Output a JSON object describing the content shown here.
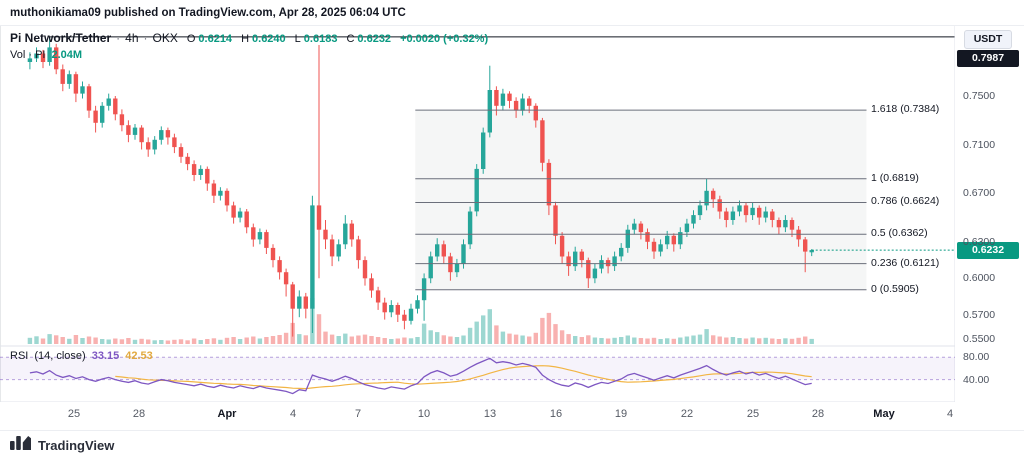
{
  "attribution": {
    "text": "muthonikiama09 published on TradingView.com, Apr 28, 2025 06:04 UTC"
  },
  "symbol_legend": {
    "name": "Pi Network/Tether",
    "separator": "·",
    "interval": "4h",
    "exchange": "OKX",
    "open_label": "O",
    "open": "0.6214",
    "high_label": "H",
    "high": "0.6240",
    "low_label": "L",
    "low": "0.6183",
    "close_label": "C",
    "close": "0.6232",
    "change": "+0.0020 (+0.32%)"
  },
  "volume_legend": {
    "label": "Vol · PI",
    "value": "2.04M"
  },
  "rsi_legend": {
    "name": "RSI",
    "params": "(14, close)",
    "value": "33.15",
    "ma_value": "42.53"
  },
  "price_axis": {
    "currency": "USDT",
    "ticks": [
      {
        "label": "0.7500",
        "value": 0.75
      },
      {
        "label": "0.7100",
        "value": 0.71
      },
      {
        "label": "0.6700",
        "value": 0.67
      },
      {
        "label": "0.6300",
        "value": 0.63
      },
      {
        "label": "0.6000",
        "value": 0.6
      },
      {
        "label": "0.5700",
        "value": 0.57
      },
      {
        "label": "0.5500",
        "value": 0.55
      }
    ],
    "high_badge": {
      "label": "0.7987",
      "value": 0.7987
    },
    "last_badge": {
      "label": "0.6232",
      "value": 0.6232
    }
  },
  "rsi_axis": {
    "ticks": [
      {
        "label": "80.00",
        "value": 80
      },
      {
        "label": "40.00",
        "value": 40
      }
    ]
  },
  "time_axis": {
    "ticks": [
      {
        "label": "25",
        "day": 2
      },
      {
        "label": "28",
        "day": 5
      },
      {
        "label": "Apr",
        "day": 9,
        "bold": true
      },
      {
        "label": "4",
        "day": 12
      },
      {
        "label": "7",
        "day": 15
      },
      {
        "label": "10",
        "day": 18
      },
      {
        "label": "13",
        "day": 21
      },
      {
        "label": "16",
        "day": 24
      },
      {
        "label": "19",
        "day": 27
      },
      {
        "label": "22",
        "day": 30
      },
      {
        "label": "25",
        "day": 33
      },
      {
        "label": "28",
        "day": 36
      },
      {
        "label": "May",
        "day": 39,
        "bold": true
      },
      {
        "label": "4",
        "day": 42
      }
    ]
  },
  "fib": {
    "start_day": 17.6,
    "end_day": 38.2,
    "levels": [
      {
        "label": "1.618 (0.7384)",
        "price": 0.7384
      },
      {
        "label": "1 (0.6819)",
        "price": 0.6819
      },
      {
        "label": "0.786 (0.6624)",
        "price": 0.6624
      },
      {
        "label": "0.5 (0.6362)",
        "price": 0.6362
      },
      {
        "label": "0.236 (0.6121)",
        "price": 0.6121
      },
      {
        "label": "0 (0.5905)",
        "price": 0.5905
      }
    ]
  },
  "footer": {
    "brand": "TradingView"
  },
  "colors": {
    "up": "#26a69a",
    "down": "#ef5350",
    "accent": "#089981",
    "rsi": "#7e57c2",
    "rsi_ma": "#f2b544",
    "band_line": "rgba(126,87,194,0.55)",
    "band_fill": "rgba(126,87,194,0.07)",
    "fib_line": "#6b6f7b",
    "fib_fill": "rgba(130,134,145,0.08)",
    "price_line_high": "#131722",
    "separator": "#e0e3eb"
  },
  "chart_data": {
    "type": "candlestick",
    "title": "Pi Network/Tether · 4h · OKX",
    "last_ohlc": {
      "open": 0.6214,
      "high": 0.624,
      "low": 0.6183,
      "close": 0.6232,
      "change": 0.002,
      "change_pct": 0.32
    },
    "price_range": [
      0.545,
      0.806
    ],
    "high_price_line": 0.7987,
    "last_price": 0.6232,
    "x_span_days": [
      "Mar 23",
      "May 5"
    ],
    "fib_levels": [
      [
        1.618,
        0.7384
      ],
      [
        1,
        0.6819
      ],
      [
        0.786,
        0.6624
      ],
      [
        0.5,
        0.6362
      ],
      [
        0.236,
        0.6121
      ],
      [
        0,
        0.5905
      ]
    ],
    "candles": [
      [
        0.778,
        0.786,
        0.772,
        0.781
      ],
      [
        0.781,
        0.79,
        0.778,
        0.785
      ],
      [
        0.785,
        0.788,
        0.773,
        0.778
      ],
      [
        0.778,
        0.7987,
        0.775,
        0.79
      ],
      [
        0.79,
        0.793,
        0.768,
        0.772
      ],
      [
        0.772,
        0.776,
        0.754,
        0.76
      ],
      [
        0.76,
        0.771,
        0.756,
        0.768
      ],
      [
        0.768,
        0.77,
        0.745,
        0.752
      ],
      [
        0.752,
        0.762,
        0.748,
        0.758
      ],
      [
        0.758,
        0.76,
        0.732,
        0.738
      ],
      [
        0.738,
        0.742,
        0.72,
        0.728
      ],
      [
        0.728,
        0.745,
        0.724,
        0.742
      ],
      [
        0.742,
        0.752,
        0.738,
        0.748
      ],
      [
        0.748,
        0.75,
        0.73,
        0.735
      ],
      [
        0.735,
        0.739,
        0.721,
        0.726
      ],
      [
        0.726,
        0.73,
        0.712,
        0.718
      ],
      [
        0.718,
        0.727,
        0.714,
        0.724
      ],
      [
        0.724,
        0.726,
        0.706,
        0.712
      ],
      [
        0.712,
        0.716,
        0.7,
        0.706
      ],
      [
        0.706,
        0.717,
        0.702,
        0.714
      ],
      [
        0.714,
        0.725,
        0.71,
        0.722
      ],
      [
        0.722,
        0.724,
        0.71,
        0.716
      ],
      [
        0.716,
        0.719,
        0.703,
        0.708
      ],
      [
        0.708,
        0.711,
        0.695,
        0.7
      ],
      [
        0.7,
        0.703,
        0.689,
        0.694
      ],
      [
        0.694,
        0.697,
        0.68,
        0.685
      ],
      [
        0.685,
        0.693,
        0.681,
        0.69
      ],
      [
        0.69,
        0.692,
        0.672,
        0.678
      ],
      [
        0.678,
        0.681,
        0.662,
        0.668
      ],
      [
        0.668,
        0.675,
        0.664,
        0.672
      ],
      [
        0.672,
        0.674,
        0.655,
        0.66
      ],
      [
        0.66,
        0.663,
        0.645,
        0.65
      ],
      [
        0.65,
        0.658,
        0.646,
        0.655
      ],
      [
        0.655,
        0.657,
        0.637,
        0.642
      ],
      [
        0.642,
        0.645,
        0.626,
        0.632
      ],
      [
        0.632,
        0.641,
        0.628,
        0.638
      ],
      [
        0.638,
        0.64,
        0.62,
        0.625
      ],
      [
        0.625,
        0.628,
        0.609,
        0.615
      ],
      [
        0.615,
        0.618,
        0.599,
        0.605
      ],
      [
        0.605,
        0.608,
        0.585,
        0.595
      ],
      [
        0.595,
        0.597,
        0.552,
        0.575
      ],
      [
        0.575,
        0.59,
        0.568,
        0.585
      ],
      [
        0.585,
        0.588,
        0.567,
        0.575
      ],
      [
        0.575,
        0.668,
        0.555,
        0.66
      ],
      [
        0.66,
        0.792,
        0.6,
        0.64
      ],
      [
        0.64,
        0.648,
        0.624,
        0.632
      ],
      [
        0.632,
        0.636,
        0.61,
        0.618
      ],
      [
        0.618,
        0.632,
        0.614,
        0.628
      ],
      [
        0.628,
        0.652,
        0.624,
        0.645
      ],
      [
        0.645,
        0.648,
        0.626,
        0.632
      ],
      [
        0.632,
        0.635,
        0.608,
        0.615
      ],
      [
        0.615,
        0.618,
        0.594,
        0.6
      ],
      [
        0.6,
        0.604,
        0.584,
        0.59
      ],
      [
        0.59,
        0.593,
        0.574,
        0.58
      ],
      [
        0.58,
        0.584,
        0.566,
        0.572
      ],
      [
        0.572,
        0.582,
        0.568,
        0.578
      ],
      [
        0.578,
        0.58,
        0.564,
        0.57
      ],
      [
        0.57,
        0.574,
        0.558,
        0.565
      ],
      [
        0.565,
        0.579,
        0.562,
        0.575
      ],
      [
        0.575,
        0.586,
        0.571,
        0.582
      ],
      [
        0.582,
        0.604,
        0.565,
        0.6
      ],
      [
        0.6,
        0.622,
        0.596,
        0.618
      ],
      [
        0.618,
        0.633,
        0.614,
        0.628
      ],
      [
        0.628,
        0.631,
        0.612,
        0.618
      ],
      [
        0.618,
        0.621,
        0.598,
        0.605
      ],
      [
        0.605,
        0.616,
        0.601,
        0.612
      ],
      [
        0.612,
        0.632,
        0.608,
        0.628
      ],
      [
        0.628,
        0.659,
        0.624,
        0.655
      ],
      [
        0.655,
        0.694,
        0.651,
        0.69
      ],
      [
        0.69,
        0.724,
        0.686,
        0.72
      ],
      [
        0.72,
        0.775,
        0.716,
        0.755
      ],
      [
        0.755,
        0.758,
        0.734,
        0.742
      ],
      [
        0.742,
        0.756,
        0.738,
        0.752
      ],
      [
        0.752,
        0.754,
        0.74,
        0.746
      ],
      [
        0.746,
        0.749,
        0.732,
        0.738
      ],
      [
        0.738,
        0.752,
        0.734,
        0.748
      ],
      [
        0.748,
        0.75,
        0.736,
        0.742
      ],
      [
        0.742,
        0.744,
        0.724,
        0.73
      ],
      [
        0.73,
        0.732,
        0.688,
        0.695
      ],
      [
        0.695,
        0.698,
        0.652,
        0.66
      ],
      [
        0.66,
        0.663,
        0.628,
        0.635
      ],
      [
        0.635,
        0.638,
        0.612,
        0.618
      ],
      [
        0.618,
        0.622,
        0.602,
        0.61
      ],
      [
        0.61,
        0.626,
        0.606,
        0.622
      ],
      [
        0.622,
        0.624,
        0.609,
        0.615
      ],
      [
        0.615,
        0.617,
        0.592,
        0.6
      ],
      [
        0.6,
        0.612,
        0.596,
        0.608
      ],
      [
        0.608,
        0.619,
        0.604,
        0.615
      ],
      [
        0.615,
        0.617,
        0.604,
        0.61
      ],
      [
        0.61,
        0.622,
        0.606,
        0.618
      ],
      [
        0.618,
        0.629,
        0.614,
        0.625
      ],
      [
        0.625,
        0.644,
        0.621,
        0.64
      ],
      [
        0.64,
        0.649,
        0.636,
        0.645
      ],
      [
        0.645,
        0.647,
        0.632,
        0.638
      ],
      [
        0.638,
        0.641,
        0.624,
        0.63
      ],
      [
        0.63,
        0.633,
        0.616,
        0.622
      ],
      [
        0.622,
        0.632,
        0.618,
        0.628
      ],
      [
        0.628,
        0.639,
        0.624,
        0.635
      ],
      [
        0.635,
        0.637,
        0.622,
        0.628
      ],
      [
        0.628,
        0.642,
        0.624,
        0.638
      ],
      [
        0.638,
        0.649,
        0.634,
        0.645
      ],
      [
        0.645,
        0.656,
        0.641,
        0.652
      ],
      [
        0.652,
        0.664,
        0.648,
        0.66
      ],
      [
        0.66,
        0.682,
        0.656,
        0.672
      ],
      [
        0.672,
        0.674,
        0.658,
        0.665
      ],
      [
        0.665,
        0.668,
        0.649,
        0.655
      ],
      [
        0.655,
        0.658,
        0.642,
        0.648
      ],
      [
        0.648,
        0.659,
        0.644,
        0.655
      ],
      [
        0.655,
        0.664,
        0.651,
        0.66
      ],
      [
        0.66,
        0.662,
        0.646,
        0.652
      ],
      [
        0.652,
        0.662,
        0.648,
        0.658
      ],
      [
        0.658,
        0.66,
        0.644,
        0.65
      ],
      [
        0.65,
        0.659,
        0.646,
        0.655
      ],
      [
        0.655,
        0.657,
        0.642,
        0.648
      ],
      [
        0.648,
        0.65,
        0.636,
        0.642
      ],
      [
        0.642,
        0.652,
        0.638,
        0.648
      ],
      [
        0.648,
        0.65,
        0.634,
        0.64
      ],
      [
        0.64,
        0.643,
        0.626,
        0.632
      ],
      [
        0.632,
        0.634,
        0.605,
        0.622
      ],
      [
        0.6214,
        0.624,
        0.6183,
        0.6232
      ]
    ],
    "volume_m": [
      2.5,
      3.1,
      2.2,
      4.0,
      3.5,
      2.8,
      2.1,
      3.6,
      2.4,
      3.0,
      2.6,
      2.0,
      1.8,
      2.2,
      1.9,
      2.4,
      1.7,
      2.1,
      1.8,
      1.5,
      1.6,
      1.4,
      1.7,
      1.9,
      1.5,
      2.2,
      1.6,
      2.0,
      2.3,
      1.7,
      2.5,
      2.8,
      2.0,
      2.6,
      3.0,
      2.2,
      2.8,
      3.2,
      3.6,
      4.5,
      8.5,
      4.0,
      3.5,
      18.5,
      12.0,
      5.0,
      3.8,
      3.2,
      4.2,
      3.0,
      3.4,
      3.8,
      3.2,
      2.8,
      2.4,
      2.0,
      2.2,
      2.6,
      2.3,
      2.8,
      8.2,
      5.5,
      4.8,
      3.5,
      3.0,
      2.8,
      3.4,
      6.5,
      9.0,
      11.5,
      14.0,
      7.5,
      5.0,
      4.2,
      3.8,
      3.4,
      3.0,
      4.5,
      10.5,
      12.5,
      8.0,
      5.5,
      4.0,
      3.2,
      2.8,
      3.5,
      2.6,
      2.4,
      2.2,
      2.5,
      2.8,
      3.4,
      2.6,
      2.4,
      2.2,
      2.5,
      2.0,
      2.3,
      2.1,
      2.6,
      3.0,
      3.4,
      3.8,
      6.0,
      3.5,
      3.0,
      2.6,
      2.8,
      2.4,
      2.2,
      2.6,
      2.3,
      2.5,
      2.2,
      2.0,
      2.3,
      2.1,
      2.5,
      3.0,
      2.04
    ],
    "rsi": {
      "band": [
        40,
        80
      ],
      "last": 33.15,
      "ma_last": 42.53,
      "values": [
        52,
        54,
        50,
        56,
        48,
        44,
        47,
        42,
        45,
        40,
        37,
        41,
        44,
        40,
        37,
        35,
        38,
        34,
        32,
        36,
        40,
        38,
        35,
        33,
        31,
        29,
        32,
        28,
        26,
        30,
        27,
        25,
        29,
        26,
        24,
        28,
        25,
        23,
        21,
        19,
        15,
        22,
        20,
        48,
        44,
        41,
        37,
        41,
        46,
        42,
        36,
        31,
        28,
        25,
        23,
        27,
        25,
        23,
        29,
        33,
        45,
        52,
        56,
        52,
        46,
        49,
        55,
        62,
        68,
        73,
        78,
        70,
        72,
        70,
        66,
        69,
        66,
        62,
        48,
        40,
        34,
        30,
        28,
        34,
        31,
        26,
        31,
        35,
        33,
        37,
        41,
        48,
        51,
        47,
        43,
        39,
        43,
        47,
        43,
        48,
        52,
        56,
        60,
        65,
        58,
        52,
        48,
        52,
        55,
        50,
        53,
        48,
        51,
        46,
        42,
        46,
        41,
        36,
        31,
        33.15
      ]
    }
  }
}
